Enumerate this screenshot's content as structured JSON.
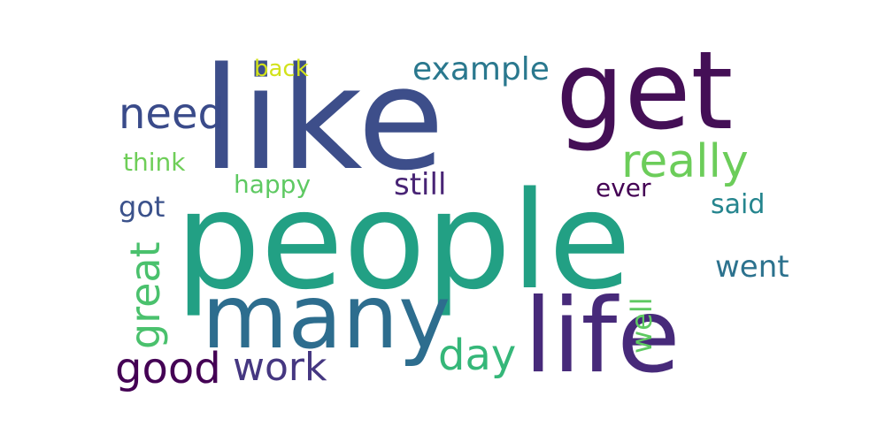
{
  "words": [
    {
      "id": "like",
      "text": "like",
      "color": "#3d4e8a"
    },
    {
      "id": "people",
      "text": "people",
      "color": "#22a084"
    },
    {
      "id": "get",
      "text": "get",
      "color": "#440f56"
    },
    {
      "id": "many",
      "text": "many",
      "color": "#2d6d8e"
    },
    {
      "id": "life",
      "text": "life",
      "color": "#472a7a"
    },
    {
      "id": "really",
      "text": "really",
      "color": "#6ccd5a"
    },
    {
      "id": "example",
      "text": "example",
      "color": "#2a788e"
    },
    {
      "id": "need",
      "text": "need",
      "color": "#3a4b8a"
    },
    {
      "id": "back",
      "text": "back",
      "color": "#d2e21b"
    },
    {
      "id": "think",
      "text": "think",
      "color": "#6ece58"
    },
    {
      "id": "happy",
      "text": "happy",
      "color": "#5ec962"
    },
    {
      "id": "still",
      "text": "still",
      "color": "#482475"
    },
    {
      "id": "ever",
      "text": "ever",
      "color": "#440154"
    },
    {
      "id": "got",
      "text": "got",
      "color": "#3b528b"
    },
    {
      "id": "said",
      "text": "said",
      "color": "#25858e"
    },
    {
      "id": "great",
      "text": "great",
      "color": "#4ac16d"
    },
    {
      "id": "went",
      "text": "went",
      "color": "#2c728e"
    },
    {
      "id": "well",
      "text": "well",
      "color": "#5ec962"
    },
    {
      "id": "day",
      "text": "day",
      "color": "#35b779"
    },
    {
      "id": "good",
      "text": "good",
      "color": "#440154"
    },
    {
      "id": "work",
      "text": "work",
      "color": "#453781"
    }
  ]
}
